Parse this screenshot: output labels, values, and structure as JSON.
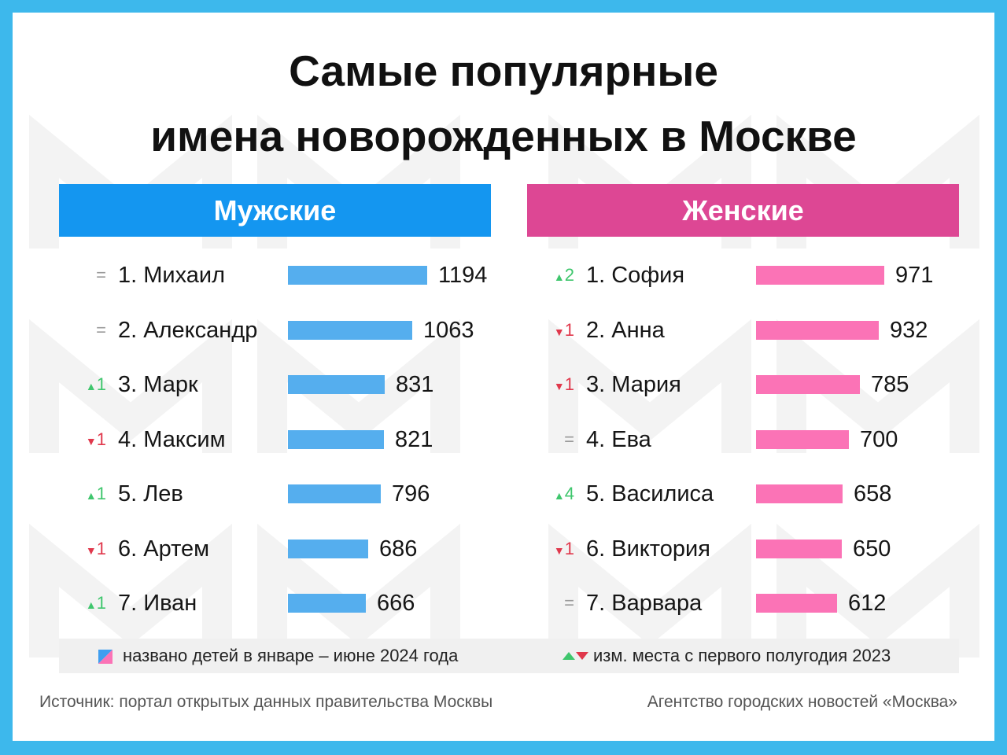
{
  "title_line1": "Самые популярные",
  "title_line2": "имена новорожденных в Москве",
  "legend": {
    "count_label": "названо детей в январе – июне 2024 года",
    "change_label": "изм. места с первого полугодия 2023"
  },
  "footer": {
    "source": "Источник: портал открытых данных правительства Москвы",
    "agency": "Агентство городских новостей «Москва»"
  },
  "colors": {
    "frame": "#3db8ec",
    "male_header": "#1496f0",
    "female_header": "#dd4794",
    "male_bar": "#55aeee",
    "female_bar": "#fb73b6",
    "up": "#3fc66d",
    "down": "#e0384c"
  },
  "chart_data": [
    {
      "type": "bar",
      "title": "Мужские",
      "categories": [
        "1. Михаил",
        "2. Александр",
        "3. Марк",
        "4. Максим",
        "5. Лев",
        "6. Артем",
        "7. Иван"
      ],
      "values": [
        1194,
        1063,
        831,
        821,
        796,
        686,
        666
      ],
      "changes": [
        {
          "dir": "eq",
          "n": ""
        },
        {
          "dir": "eq",
          "n": ""
        },
        {
          "dir": "up",
          "n": "1"
        },
        {
          "dir": "down",
          "n": "1"
        },
        {
          "dir": "up",
          "n": "1"
        },
        {
          "dir": "down",
          "n": "1"
        },
        {
          "dir": "up",
          "n": "1"
        }
      ]
    },
    {
      "type": "bar",
      "title": "Женские",
      "categories": [
        "1. София",
        "2. Анна",
        "3. Мария",
        "4. Ева",
        "5. Василиса",
        "6. Виктория",
        "7. Варвара"
      ],
      "values": [
        971,
        932,
        785,
        700,
        658,
        650,
        612
      ],
      "changes": [
        {
          "dir": "up",
          "n": "2"
        },
        {
          "dir": "down",
          "n": "1"
        },
        {
          "dir": "down",
          "n": "1"
        },
        {
          "dir": "eq",
          "n": ""
        },
        {
          "dir": "up",
          "n": "4"
        },
        {
          "dir": "down",
          "n": "1"
        },
        {
          "dir": "eq",
          "n": ""
        }
      ]
    }
  ]
}
